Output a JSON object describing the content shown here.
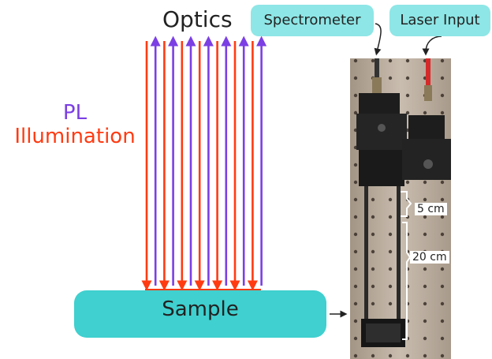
{
  "title": "Optics",
  "illumination_label": {
    "line1": "PL",
    "line2": "Illumination"
  },
  "sample_label": "Sample",
  "callouts": {
    "spectrometer": "Spectrometer",
    "laser": "Laser Input"
  },
  "dimensions": {
    "short": "5 cm",
    "long": "20 cm"
  },
  "colors": {
    "excitation": "#ff3b12",
    "emission": "#7b3fe4",
    "sample": "#3fd0cf",
    "callout": "#8ee6e6"
  },
  "photo": {
    "description_icon": "optical-setup-photo"
  }
}
